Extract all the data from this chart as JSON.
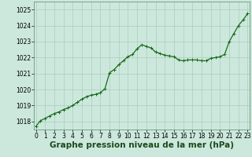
{
  "x": [
    0,
    0.5,
    1,
    1.5,
    2,
    2.5,
    3,
    3.5,
    4,
    4.5,
    5,
    5.5,
    6,
    6.5,
    7,
    7.5,
    8,
    8.5,
    9,
    9.5,
    10,
    10.5,
    11,
    11.5,
    12,
    12.5,
    13,
    13.5,
    14,
    14.5,
    15,
    15.5,
    16,
    16.5,
    17,
    17.5,
    18,
    18.5,
    19,
    19.5,
    20,
    20.5,
    21,
    21.5,
    22,
    22.5,
    23
  ],
  "y": [
    1017.7,
    1018.05,
    1018.2,
    1018.35,
    1018.5,
    1018.6,
    1018.75,
    1018.85,
    1019.0,
    1019.2,
    1019.4,
    1019.55,
    1019.65,
    1019.7,
    1019.8,
    1020.05,
    1021.05,
    1021.25,
    1021.55,
    1021.8,
    1022.05,
    1022.2,
    1022.55,
    1022.8,
    1022.7,
    1022.6,
    1022.35,
    1022.25,
    1022.15,
    1022.1,
    1022.05,
    1021.85,
    1021.8,
    1021.85,
    1021.85,
    1021.85,
    1021.8,
    1021.8,
    1021.95,
    1022.0,
    1022.05,
    1022.2,
    1023.0,
    1023.5,
    1024.0,
    1024.35,
    1024.75
  ],
  "line_color": "#1a6b1a",
  "marker_color": "#1a6b1a",
  "bg_color": "#cce8dd",
  "grid_color": "#aaccbb",
  "xlabel": "Graphe pression niveau de la mer (hPa)",
  "xlabel_fontsize": 7.5,
  "ylim": [
    1017.5,
    1025.5
  ],
  "xlim": [
    -0.2,
    23.2
  ],
  "yticks": [
    1018,
    1019,
    1020,
    1021,
    1022,
    1023,
    1024,
    1025
  ],
  "xticks": [
    0,
    1,
    2,
    3,
    4,
    5,
    6,
    7,
    8,
    9,
    10,
    11,
    12,
    13,
    14,
    15,
    16,
    17,
    18,
    19,
    20,
    21,
    22,
    23
  ],
  "tick_fontsize": 5.5,
  "marker_size": 2.5,
  "line_width": 0.9
}
